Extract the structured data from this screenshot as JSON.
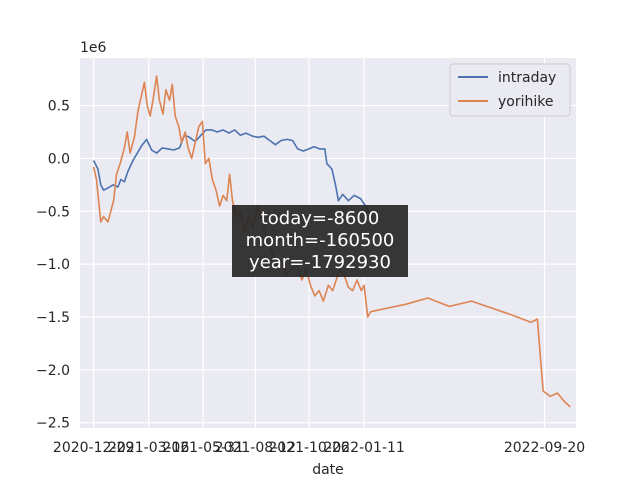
{
  "chart_data": {
    "type": "line",
    "xlabel": "date",
    "ylabel": "",
    "y_offset_label": "1e6",
    "x_type": "date",
    "xlim": [
      "2020-12-10",
      "2022-11-03"
    ],
    "ylim": [
      -2.55,
      0.95
    ],
    "x_ticks": [
      "2020-12-29",
      "2021-03-16",
      "2021-05-31",
      "2021-08-12",
      "2021-10-26",
      "2022-01-11",
      "2022-09-20"
    ],
    "y_ticks": [
      {
        "value": 0.5,
        "label": "0.5"
      },
      {
        "value": 0.0,
        "label": "0.0"
      },
      {
        "value": -0.5,
        "label": "−0.5"
      },
      {
        "value": -1.0,
        "label": "−1.0"
      },
      {
        "value": -1.5,
        "label": "−1.5"
      },
      {
        "value": -2.0,
        "label": "−2.0"
      },
      {
        "value": -2.5,
        "label": "−2.5"
      }
    ],
    "grid": true,
    "legend_position": "top-right",
    "annotation": [
      "today=-8600",
      "month=-160500",
      "year=-1792930"
    ],
    "series": [
      {
        "name": "intraday",
        "color": "#4c72b0",
        "points": [
          [
            "2020-12-29",
            -0.02
          ],
          [
            "2021-01-04",
            -0.1
          ],
          [
            "2021-01-08",
            -0.25
          ],
          [
            "2021-01-12",
            -0.3
          ],
          [
            "2021-01-18",
            -0.28
          ],
          [
            "2021-01-25",
            -0.25
          ],
          [
            "2021-02-01",
            -0.27
          ],
          [
            "2021-02-05",
            -0.2
          ],
          [
            "2021-02-10",
            -0.22
          ],
          [
            "2021-02-15",
            -0.12
          ],
          [
            "2021-02-22",
            -0.02
          ],
          [
            "2021-02-28",
            0.05
          ],
          [
            "2021-03-06",
            0.12
          ],
          [
            "2021-03-13",
            0.18
          ],
          [
            "2021-03-20",
            0.08
          ],
          [
            "2021-03-27",
            0.05
          ],
          [
            "2021-04-04",
            0.1
          ],
          [
            "2021-04-12",
            0.09
          ],
          [
            "2021-04-20",
            0.08
          ],
          [
            "2021-04-28",
            0.1
          ],
          [
            "2021-05-05",
            0.22
          ],
          [
            "2021-05-12",
            0.2
          ],
          [
            "2021-05-20",
            0.16
          ],
          [
            "2021-05-28",
            0.22
          ],
          [
            "2021-06-04",
            0.27
          ],
          [
            "2021-06-12",
            0.27
          ],
          [
            "2021-06-20",
            0.25
          ],
          [
            "2021-06-28",
            0.27
          ],
          [
            "2021-07-06",
            0.24
          ],
          [
            "2021-07-14",
            0.27
          ],
          [
            "2021-07-22",
            0.22
          ],
          [
            "2021-07-30",
            0.24
          ],
          [
            "2021-08-08",
            0.21
          ],
          [
            "2021-08-16",
            0.2
          ],
          [
            "2021-08-24",
            0.21
          ],
          [
            "2021-09-01",
            0.17
          ],
          [
            "2021-09-09",
            0.13
          ],
          [
            "2021-09-17",
            0.17
          ],
          [
            "2021-09-25",
            0.18
          ],
          [
            "2021-10-03",
            0.17
          ],
          [
            "2021-10-10",
            0.09
          ],
          [
            "2021-10-18",
            0.07
          ],
          [
            "2021-10-26",
            0.09
          ],
          [
            "2021-11-02",
            0.11
          ],
          [
            "2021-11-10",
            0.09
          ],
          [
            "2021-11-17",
            0.09
          ],
          [
            "2021-11-20",
            -0.05
          ],
          [
            "2021-11-27",
            -0.1
          ],
          [
            "2021-12-02",
            -0.25
          ],
          [
            "2021-12-06",
            -0.4
          ],
          [
            "2021-12-12",
            -0.34
          ],
          [
            "2021-12-20",
            -0.4
          ],
          [
            "2021-12-28",
            -0.35
          ],
          [
            "2022-01-06",
            -0.38
          ],
          [
            "2022-01-13",
            -0.45
          ],
          [
            "2022-01-18",
            -0.52
          ],
          [
            "2022-01-22",
            -0.5
          ],
          [
            "2022-01-28",
            -0.52
          ],
          [
            "2022-02-01",
            -0.58
          ],
          [
            "2022-02-04",
            -0.57
          ]
        ]
      },
      {
        "name": "yorihike",
        "color": "#dd8452",
        "points": [
          [
            "2020-12-29",
            -0.08
          ],
          [
            "2021-01-02",
            -0.2
          ],
          [
            "2021-01-05",
            -0.4
          ],
          [
            "2021-01-08",
            -0.6
          ],
          [
            "2021-01-12",
            -0.55
          ],
          [
            "2021-01-18",
            -0.6
          ],
          [
            "2021-01-22",
            -0.5
          ],
          [
            "2021-01-26",
            -0.4
          ],
          [
            "2021-01-30",
            -0.15
          ],
          [
            "2021-02-04",
            -0.05
          ],
          [
            "2021-02-10",
            0.1
          ],
          [
            "2021-02-14",
            0.25
          ],
          [
            "2021-02-18",
            0.05
          ],
          [
            "2021-02-24",
            0.2
          ],
          [
            "2021-03-01",
            0.45
          ],
          [
            "2021-03-06",
            0.6
          ],
          [
            "2021-03-10",
            0.72
          ],
          [
            "2021-03-14",
            0.5
          ],
          [
            "2021-03-18",
            0.4
          ],
          [
            "2021-03-22",
            0.55
          ],
          [
            "2021-03-27",
            0.78
          ],
          [
            "2021-03-31",
            0.55
          ],
          [
            "2021-04-05",
            0.42
          ],
          [
            "2021-04-09",
            0.65
          ],
          [
            "2021-04-14",
            0.55
          ],
          [
            "2021-04-18",
            0.7
          ],
          [
            "2021-04-22",
            0.4
          ],
          [
            "2021-04-27",
            0.3
          ],
          [
            "2021-05-01",
            0.15
          ],
          [
            "2021-05-06",
            0.25
          ],
          [
            "2021-05-10",
            0.1
          ],
          [
            "2021-05-15",
            0.0
          ],
          [
            "2021-05-20",
            0.15
          ],
          [
            "2021-05-25",
            0.3
          ],
          [
            "2021-05-30",
            0.35
          ],
          [
            "2021-06-03",
            -0.05
          ],
          [
            "2021-06-08",
            0.0
          ],
          [
            "2021-06-13",
            -0.2
          ],
          [
            "2021-06-18",
            -0.3
          ],
          [
            "2021-06-23",
            -0.45
          ],
          [
            "2021-06-28",
            -0.35
          ],
          [
            "2021-07-03",
            -0.4
          ],
          [
            "2021-07-07",
            -0.15
          ],
          [
            "2021-07-11",
            -0.4
          ],
          [
            "2021-07-16",
            -0.55
          ],
          [
            "2021-07-22",
            -0.5
          ],
          [
            "2021-07-28",
            -0.7
          ],
          [
            "2021-08-03",
            -0.55
          ],
          [
            "2021-08-09",
            -0.65
          ],
          [
            "2021-08-15",
            -0.45
          ],
          [
            "2021-08-22",
            -0.6
          ],
          [
            "2021-08-29",
            -0.8
          ],
          [
            "2021-09-06",
            -0.9
          ],
          [
            "2021-09-12",
            -1.05
          ],
          [
            "2021-09-18",
            -1.0
          ],
          [
            "2021-09-25",
            -1.1
          ],
          [
            "2021-10-02",
            -1.05
          ],
          [
            "2021-10-09",
            -1.0
          ],
          [
            "2021-10-16",
            -1.15
          ],
          [
            "2021-10-22",
            -1.05
          ],
          [
            "2021-10-28",
            -1.2
          ],
          [
            "2021-11-03",
            -1.3
          ],
          [
            "2021-11-09",
            -1.25
          ],
          [
            "2021-11-15",
            -1.35
          ],
          [
            "2021-11-22",
            -1.2
          ],
          [
            "2021-11-28",
            -1.25
          ],
          [
            "2021-12-03",
            -1.15
          ],
          [
            "2021-12-08",
            -1.05
          ],
          [
            "2021-12-14",
            -1.1
          ],
          [
            "2021-12-20",
            -1.22
          ],
          [
            "2021-12-26",
            -1.25
          ],
          [
            "2022-01-01",
            -1.15
          ],
          [
            "2022-01-07",
            -1.25
          ],
          [
            "2022-01-11",
            -1.2
          ],
          [
            "2022-01-16",
            -1.5
          ],
          [
            "2022-01-20",
            -1.45
          ],
          [
            "2022-02-10",
            -1.42
          ],
          [
            "2022-03-10",
            -1.38
          ],
          [
            "2022-04-10",
            -1.32
          ],
          [
            "2022-05-10",
            -1.4
          ],
          [
            "2022-06-10",
            -1.35
          ],
          [
            "2022-07-10",
            -1.42
          ],
          [
            "2022-08-05",
            -1.48
          ],
          [
            "2022-09-01",
            -1.55
          ],
          [
            "2022-09-10",
            -1.52
          ],
          [
            "2022-09-18",
            -2.2
          ],
          [
            "2022-09-28",
            -2.25
          ],
          [
            "2022-10-08",
            -2.22
          ],
          [
            "2022-10-18",
            -2.3
          ],
          [
            "2022-10-26",
            -2.35
          ]
        ]
      }
    ]
  }
}
